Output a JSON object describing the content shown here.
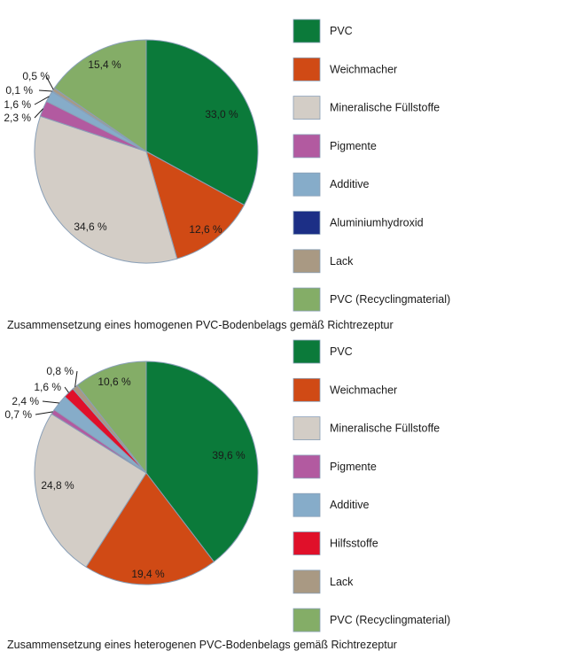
{
  "chart_data": [
    {
      "type": "pie",
      "title": "Zusammensetzung eines homogenen PVC-Bodenbelags gemäß Richtrezeptur",
      "slices": [
        {
          "name": "PVC",
          "value": 33.0,
          "label": "33,0 %",
          "color": "#0b7a3a"
        },
        {
          "name": "Weichmacher",
          "value": 12.6,
          "label": "12,6 %",
          "color": "#d04a15"
        },
        {
          "name": "Mineralische Füllstoffe",
          "value": 34.6,
          "label": "34,6 %",
          "color": "#d3cdc6"
        },
        {
          "name": "Pigmente",
          "value": 2.3,
          "label": "2,3 %",
          "color": "#b25aa0"
        },
        {
          "name": "Additive",
          "value": 1.6,
          "label": "1,6 %",
          "color": "#86acc9"
        },
        {
          "name": "Aluminiumhydroxid",
          "value": 0.1,
          "label": "0,1 %",
          "color": "#1c2f86"
        },
        {
          "name": "Lack",
          "value": 0.5,
          "label": "0,5 %",
          "color": "#a99983"
        },
        {
          "name": "PVC (Recyclingmaterial)",
          "value": 15.4,
          "label": "15,4 %",
          "color": "#84ad67"
        }
      ],
      "legend": [
        "PVC",
        "Weichmacher",
        "Mineralische Füllstoffe",
        "Pigmente",
        "Additive",
        "Aluminiumhydroxid",
        "Lack",
        "PVC (Recyclingmaterial)"
      ],
      "legend_placement": "right"
    },
    {
      "type": "pie",
      "title": "Zusammensetzung eines heterogenen PVC-Bodenbelags gemäß Richtrezeptur",
      "slices": [
        {
          "name": "PVC",
          "value": 39.6,
          "label": "39,6 %",
          "color": "#0b7a3a"
        },
        {
          "name": "Weichmacher",
          "value": 19.4,
          "label": "19,4 %",
          "color": "#d04a15"
        },
        {
          "name": "Mineralische Füllstoffe",
          "value": 24.8,
          "label": "24,8 %",
          "color": "#d3cdc6"
        },
        {
          "name": "Pigmente",
          "value": 0.7,
          "label": "0,7 %",
          "color": "#b25aa0"
        },
        {
          "name": "Additive",
          "value": 2.4,
          "label": "2,4 %",
          "color": "#86acc9"
        },
        {
          "name": "Hilfsstoffe",
          "value": 1.6,
          "label": "1,6 %",
          "color": "#e0102a"
        },
        {
          "name": "Lack",
          "value": 0.8,
          "label": "0,8 %",
          "color": "#a99983"
        },
        {
          "name": "PVC (Recyclingmaterial)",
          "value": 10.6,
          "label": "10,6 %",
          "color": "#84ad67"
        }
      ],
      "legend": [
        "PVC",
        "Weichmacher",
        "Mineralische Füllstoffe",
        "Pigmente",
        "Additive",
        "Hilfsstoffe",
        "Lack",
        "PVC (Recyclingmaterial)"
      ],
      "legend_placement": "right"
    }
  ]
}
